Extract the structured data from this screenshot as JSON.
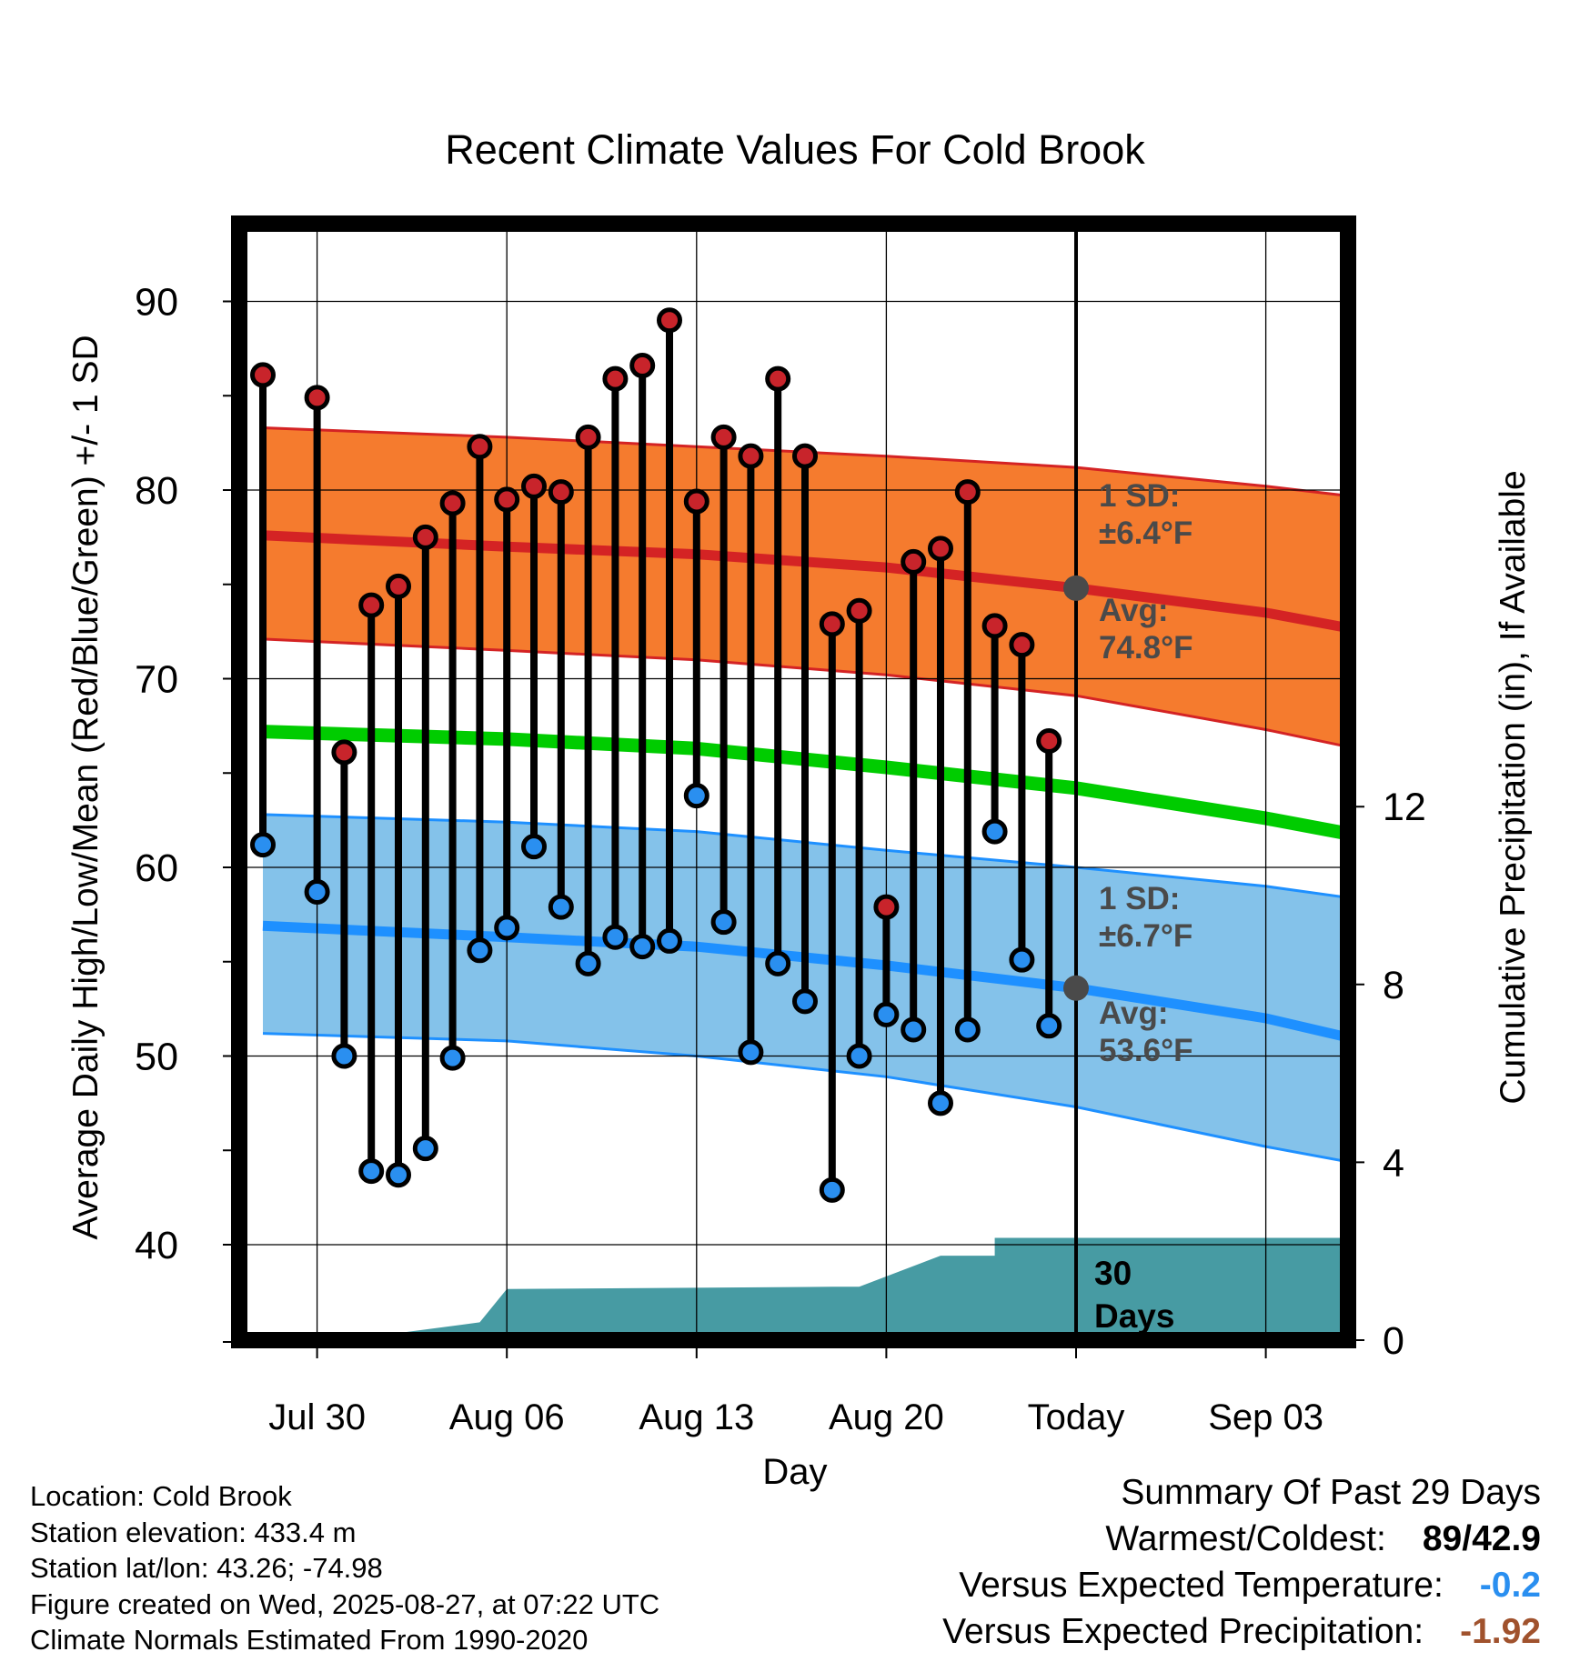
{
  "chart_data": {
    "type": "line",
    "title": "Recent Climate Values For Cold Brook",
    "xlabel": "Day",
    "ylabel": "Average Daily High/Low/Mean (Red/Blue/Green) +/- 1 SD",
    "y2label": "Cumulative Precipitation (in), If Available",
    "ylim": [
      35,
      95
    ],
    "y_ticks": [
      40,
      50,
      60,
      70,
      80,
      90
    ],
    "y2_ticks": [
      0,
      4,
      8,
      12
    ],
    "x_ticks": [
      "Jul 30",
      "Aug 06",
      "Aug 13",
      "Aug 20",
      "Today",
      "Sep 03"
    ],
    "days": [
      "Jul 28",
      "Jul 29",
      "Jul 30",
      "Jul 31",
      "Aug 01",
      "Aug 02",
      "Aug 03",
      "Aug 04",
      "Aug 05",
      "Aug 06",
      "Aug 07",
      "Aug 08",
      "Aug 09",
      "Aug 10",
      "Aug 11",
      "Aug 12",
      "Aug 13",
      "Aug 14",
      "Aug 15",
      "Aug 16",
      "Aug 17",
      "Aug 18",
      "Aug 19",
      "Aug 20",
      "Aug 21",
      "Aug 22",
      "Aug 23",
      "Aug 24",
      "Aug 25",
      "Aug 26",
      "Aug 27",
      "Aug 28",
      "Aug 29",
      "Aug 30",
      "Aug 31",
      "Sep 01",
      "Sep 02",
      "Sep 03",
      "Sep 04",
      "Sep 05",
      "Sep 06"
    ],
    "series": [
      {
        "name": "High",
        "values": [
          86.1,
          null,
          84.9,
          66.1,
          73.9,
          74.9,
          77.5,
          79.3,
          82.3,
          79.5,
          80.2,
          79.9,
          82.8,
          85.9,
          86.6,
          89.0,
          79.4,
          82.8,
          81.8,
          85.9,
          81.8,
          72.9,
          73.6,
          57.9,
          76.2,
          76.9,
          79.9,
          72.8,
          71.8,
          66.7,
          null,
          null,
          null,
          null,
          null,
          null,
          null,
          null,
          null,
          null,
          null
        ]
      },
      {
        "name": "Low",
        "values": [
          61.2,
          null,
          58.7,
          50.0,
          43.9,
          43.7,
          45.1,
          49.9,
          55.6,
          56.8,
          61.1,
          57.9,
          54.9,
          56.3,
          55.8,
          56.1,
          63.8,
          57.1,
          50.2,
          54.9,
          52.9,
          42.9,
          50.0,
          52.2,
          51.4,
          47.5,
          51.4,
          61.9,
          55.1,
          51.6,
          null,
          null,
          null,
          null,
          null,
          null,
          null,
          null,
          null,
          null,
          null
        ]
      }
    ],
    "normals": {
      "days": [
        "Jul 28",
        "Aug 06",
        "Aug 13",
        "Aug 20",
        "Aug 27",
        "Sep 03",
        "Sep 06"
      ],
      "high_avg": [
        77.6,
        77.0,
        76.6,
        75.9,
        74.8,
        73.5,
        72.7
      ],
      "high_plus_sd": [
        83.3,
        82.8,
        82.3,
        81.8,
        81.2,
        80.2,
        79.7
      ],
      "high_minus_sd": [
        72.1,
        71.5,
        71.0,
        70.2,
        69.1,
        67.3,
        66.4
      ],
      "mean": [
        67.2,
        66.8,
        66.3,
        65.3,
        64.2,
        62.6,
        61.8
      ],
      "low_avg": [
        56.9,
        56.3,
        55.8,
        54.8,
        53.6,
        52.0,
        51.0
      ],
      "low_plus_sd": [
        62.8,
        62.4,
        61.9,
        60.9,
        60.0,
        59.0,
        58.4
      ],
      "low_minus_sd": [
        51.2,
        50.8,
        50.0,
        48.9,
        47.3,
        45.2,
        44.4
      ]
    },
    "precipitation": {
      "days": [
        "Jul 28",
        "Jul 31",
        "Aug 05",
        "Aug 05",
        "Aug 06",
        "Aug 18",
        "Aug 18",
        "Aug 19",
        "Aug 22",
        "Aug 24",
        "Aug 24",
        "Aug 27",
        "Sep 06"
      ],
      "cumulative": [
        0.0,
        0.0,
        0.4,
        0.4,
        1.15,
        1.2,
        1.2,
        1.2,
        1.9,
        1.9,
        2.3,
        2.3,
        2.3
      ]
    },
    "annotations": {
      "high_sd_label": "1 SD:",
      "high_sd_value": "±6.4°F",
      "high_avg_label": "Avg:",
      "high_avg_value": "74.8°F",
      "low_sd_label": "1 SD:",
      "low_sd_value": "±6.7°F",
      "low_avg_label": "Avg:",
      "low_avg_value": "53.6°F",
      "period_line1": "30",
      "period_line2": "Days"
    },
    "colors": {
      "high_band": "#f57b2e",
      "high_line": "#d42324",
      "mean_line": "#00cc00",
      "low_band": "#84c2ea",
      "low_line": "#1e90ff",
      "precip_fill": "#479ba3",
      "high_marker": "#c8242b",
      "low_marker": "#2a8ff0",
      "annotation_text": "#4a4a4a"
    }
  },
  "footer": {
    "location": "Location: Cold Brook",
    "elevation": "Station elevation: 433.4 m",
    "latlon": "Station lat/lon: 43.26; -74.98",
    "created": "Figure created on Wed, 2025-08-27, at 07:22 UTC",
    "normals": "Climate Normals Estimated From 1990-2020"
  },
  "summary": {
    "title": "Summary Of Past 29 Days",
    "warmest_label": "Warmest/Coldest:",
    "warmest_high": "89",
    "warmest_sep": "/",
    "warmest_low": "42.9",
    "temp_label": "Versus Expected Temperature:",
    "temp_value": "-0.2",
    "precip_label": "Versus Expected Precipitation:",
    "precip_value": "-1.92"
  }
}
